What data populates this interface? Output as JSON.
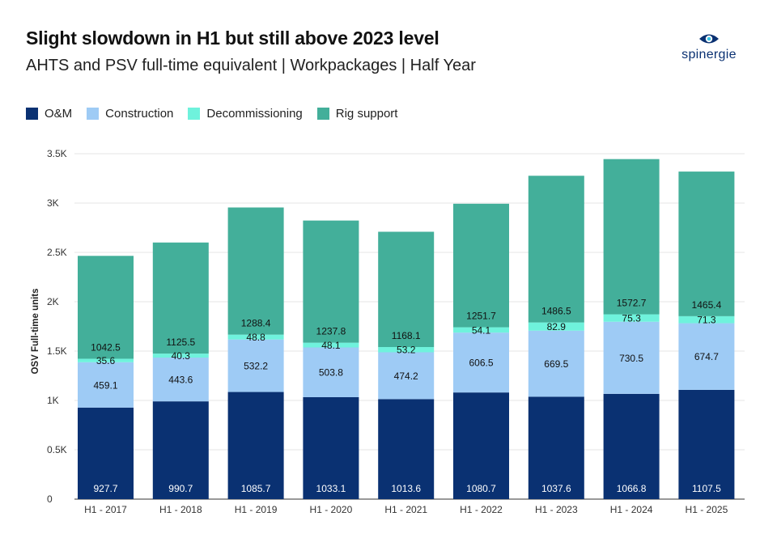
{
  "title": "Slight slowdown in H1 but still above 2023 level",
  "subtitle": "AHTS and PSV full-time equivalent | Workpackages | Half Year",
  "logo_text": "spinergie",
  "colors": {
    "om": "#0a3172",
    "construction": "#9ecbf5",
    "decommissioning": "#6ff2dc",
    "rig_support": "#43af9a"
  },
  "chart_data": {
    "type": "bar",
    "stacked": true,
    "ylabel": "OSV Full-time units",
    "xlabel": "",
    "ylim": [
      0,
      3500
    ],
    "yticks": [
      0,
      500,
      1000,
      1500,
      2000,
      2500,
      3000,
      3500
    ],
    "ytick_labels": [
      "0",
      "0.5K",
      "1K",
      "1.5K",
      "2K",
      "2.5K",
      "3K",
      "3.5K"
    ],
    "grid": true,
    "legend": "top-left",
    "categories": [
      "H1 - 2017",
      "H1 - 2018",
      "H1 - 2019",
      "H1 - 2020",
      "H1 - 2021",
      "H1 - 2022",
      "H1 - 2023",
      "H1 - 2024",
      "H1 - 2025"
    ],
    "series": [
      {
        "name": "O&M",
        "key": "om",
        "values": [
          927.7,
          990.7,
          1085.7,
          1033.1,
          1013.6,
          1080.7,
          1037.6,
          1066.8,
          1107.5
        ]
      },
      {
        "name": "Construction",
        "key": "construction",
        "values": [
          459.1,
          443.6,
          532.2,
          503.8,
          474.2,
          606.5,
          669.5,
          730.5,
          674.7
        ]
      },
      {
        "name": "Decommissioning",
        "key": "decommissioning",
        "values": [
          35.6,
          40.3,
          48.8,
          48.1,
          53.2,
          54.1,
          82.9,
          75.3,
          71.3
        ]
      },
      {
        "name": "Rig support",
        "key": "rig_support",
        "values": [
          1042.5,
          1125.5,
          1288.4,
          1237.8,
          1168.1,
          1251.7,
          1486.5,
          1572.7,
          1465.4
        ]
      }
    ]
  }
}
